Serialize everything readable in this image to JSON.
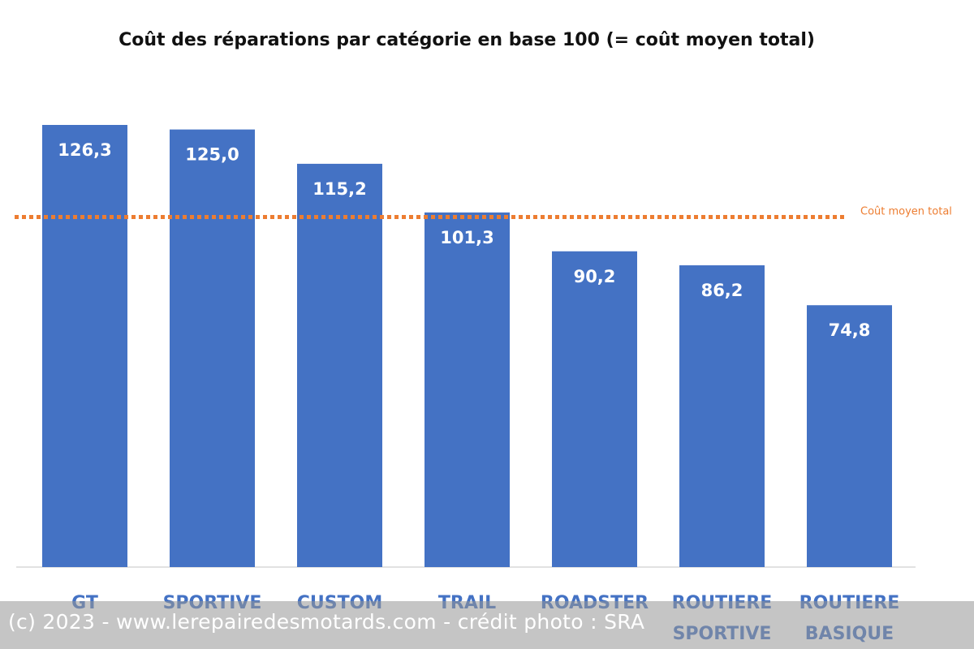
{
  "chart_data": {
    "type": "bar",
    "title": "Coût des réparations par catégorie en base 100 (= coût moyen total)",
    "categories": [
      [
        "GT"
      ],
      [
        "SPORTIVE"
      ],
      [
        "CUSTOM"
      ],
      [
        "TRAIL"
      ],
      [
        "ROADSTER"
      ],
      [
        "ROUTIERE",
        "SPORTIVE"
      ],
      [
        "ROUTIERE",
        "BASIQUE"
      ]
    ],
    "values": [
      126.3,
      125.0,
      115.2,
      101.3,
      90.2,
      86.2,
      74.8
    ],
    "value_labels": [
      "126,3",
      "125,0",
      "115,2",
      "101,3",
      "90,2",
      "86,2",
      "74,8"
    ],
    "ylim": [
      0,
      126.3
    ],
    "grid": false,
    "reference_line": {
      "value": 100,
      "label": "Coût moyen total",
      "style": "dotted"
    },
    "colors": {
      "bar": "#4472C4",
      "reference": "#ED7D31",
      "category_text": "#4472C4"
    }
  },
  "watermark": {
    "text": "(c) 2023 - www.lerepairedesmotards.com - crédit photo : SRA"
  }
}
